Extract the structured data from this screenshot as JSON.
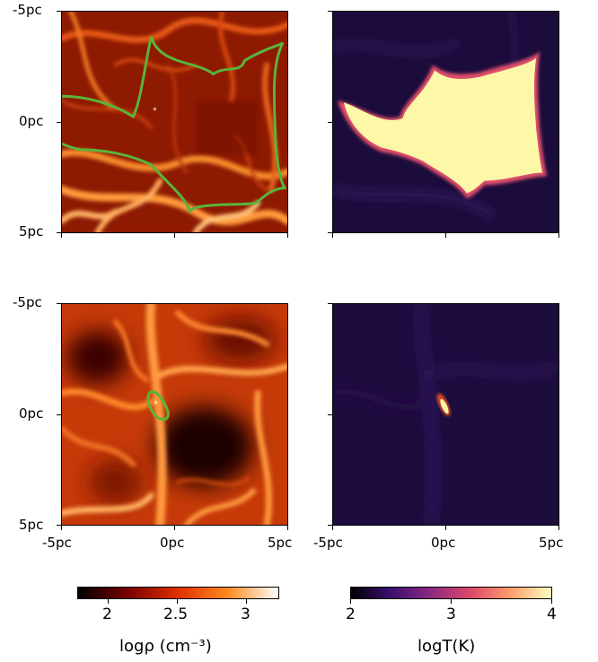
{
  "figure": {
    "y_ticks_top": [
      "-5pc",
      "0pc",
      "5pc"
    ],
    "y_ticks_bottom": [
      "-5pc",
      "0pc",
      "5pc"
    ],
    "x_ticks_left": [
      "-5pc",
      "0pc",
      "5pc"
    ],
    "x_ticks_right": [
      "-5pc",
      "0pc",
      "5pc"
    ],
    "panels": [
      {
        "id": "top-density",
        "quantity": "log density",
        "colormap": "gist_heat",
        "contour_color": "#5ab43a",
        "star_marker": true
      },
      {
        "id": "top-temperature",
        "quantity": "log temperature",
        "colormap": "inferno",
        "hot_region": "large"
      },
      {
        "id": "bottom-density",
        "quantity": "log density",
        "colormap": "gist_heat",
        "contour_color": "#5ab43a",
        "star_marker": true
      },
      {
        "id": "bottom-temperature",
        "quantity": "log temperature",
        "colormap": "inferno",
        "hot_region": "small"
      }
    ],
    "colorbars": {
      "density": {
        "ticks": [
          "2",
          "2.5",
          "3"
        ],
        "range": [
          1.8,
          3.25
        ],
        "label": "logρ (cm⁻³)",
        "colors": [
          "#000000",
          "#7a0000",
          "#e03000",
          "#ff8a20",
          "#ffffff"
        ]
      },
      "temperature": {
        "ticks": [
          "2",
          "3",
          "4"
        ],
        "range": [
          2,
          4
        ],
        "label": "logT(K)",
        "colors": [
          "#000004",
          "#3b0f70",
          "#8c2981",
          "#de4968",
          "#fe9f6d",
          "#fcfdbf"
        ]
      }
    }
  }
}
